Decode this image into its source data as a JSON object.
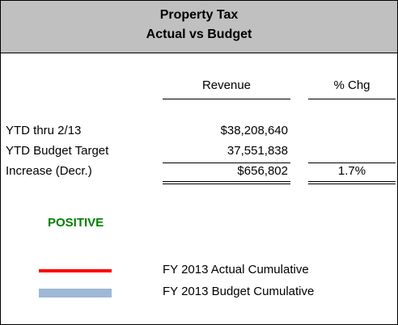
{
  "header": {
    "title": [
      "Property Tax",
      "Actual vs Budget"
    ]
  },
  "table": {
    "columns": [
      "Revenue",
      "% Chg"
    ],
    "rows": [
      {
        "label": "YTD thru 2/13",
        "revenue": "$38,208,640"
      },
      {
        "label": "YTD Budget Target",
        "revenue": "37,551,838"
      },
      {
        "label": "Increase (Decr.)",
        "revenue": "$656,802",
        "pct_chg": "1.7%"
      }
    ]
  },
  "status": {
    "text": "POSITIVE",
    "color": "#008000"
  },
  "legend": [
    {
      "name": "FY 2013 Actual Cumulative",
      "color": "#ff0000",
      "style": "line"
    },
    {
      "name": "FY 2013 Budget Cumulative",
      "color": "#9fb8d6",
      "style": "bar"
    }
  ]
}
